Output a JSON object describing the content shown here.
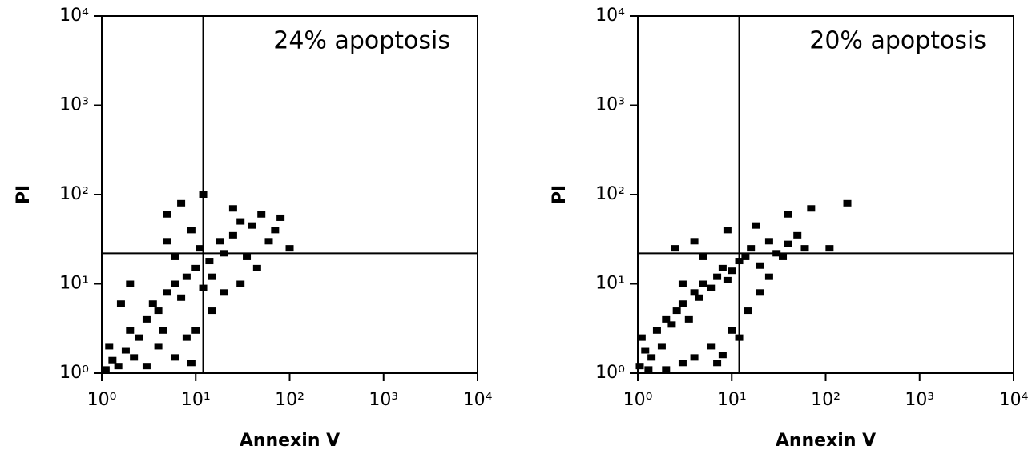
{
  "chart_data": [
    {
      "type": "scatter",
      "annotation": "24% apoptosis",
      "xlabel": "Annexin V",
      "ylabel": "PI",
      "xscale": "log",
      "yscale": "log",
      "color": "#000000",
      "xlim": [
        1,
        10000
      ],
      "ylim": [
        1,
        10000
      ],
      "xticks": [
        {
          "value": 1,
          "label": "10⁰"
        },
        {
          "value": 10,
          "label": "10¹"
        },
        {
          "value": 100,
          "label": "10²"
        },
        {
          "value": 1000,
          "label": "10³"
        },
        {
          "value": 10000,
          "label": "10⁴"
        }
      ],
      "yticks": [
        {
          "value": 1,
          "label": "10⁰"
        },
        {
          "value": 10,
          "label": "10¹"
        },
        {
          "value": 100,
          "label": "10²"
        },
        {
          "value": 1000,
          "label": "10³"
        },
        {
          "value": 10000,
          "label": "10⁴"
        }
      ],
      "quadrant_lines": {
        "x": 12,
        "y": 22
      },
      "x": [
        1.1,
        1.3,
        1.5,
        1.2,
        1.8,
        2,
        2.5,
        3,
        2.2,
        3.5,
        4,
        4.5,
        5,
        6,
        7,
        8,
        6,
        5,
        9,
        10,
        11,
        12,
        14,
        15,
        18,
        20,
        25,
        30,
        35,
        40,
        50,
        60,
        70,
        80,
        3,
        4,
        6,
        8,
        10,
        15,
        20,
        30,
        45,
        2,
        1.6,
        5,
        7,
        9,
        12,
        25,
        100
      ],
      "values": [
        1.1,
        1.4,
        1.2,
        2,
        1.8,
        3,
        2.5,
        4,
        1.5,
        6,
        5,
        3,
        8,
        10,
        7,
        12,
        20,
        30,
        40,
        15,
        25,
        9,
        18,
        12,
        30,
        22,
        35,
        50,
        20,
        45,
        60,
        30,
        40,
        55,
        1.2,
        2,
        1.5,
        2.5,
        3,
        5,
        8,
        10,
        15,
        10,
        6,
        60,
        80,
        1.3,
        100,
        70,
        25
      ]
    },
    {
      "type": "scatter",
      "annotation": "20% apoptosis",
      "xlabel": "Annexin V",
      "ylabel": "PI",
      "xscale": "log",
      "yscale": "log",
      "color": "#000000",
      "xlim": [
        1,
        10000
      ],
      "ylim": [
        1,
        10000
      ],
      "xticks": [
        {
          "value": 1,
          "label": "10⁰"
        },
        {
          "value": 10,
          "label": "10¹"
        },
        {
          "value": 100,
          "label": "10²"
        },
        {
          "value": 1000,
          "label": "10³"
        },
        {
          "value": 10000,
          "label": "10⁴"
        }
      ],
      "yticks": [
        {
          "value": 1,
          "label": "10⁰"
        },
        {
          "value": 10,
          "label": "10¹"
        },
        {
          "value": 100,
          "label": "10²"
        },
        {
          "value": 1000,
          "label": "10³"
        },
        {
          "value": 10000,
          "label": "10⁴"
        }
      ],
      "quadrant_lines": {
        "x": 12,
        "y": 22
      },
      "x": [
        1.05,
        1.2,
        1.4,
        1.1,
        1.6,
        1.8,
        2,
        2.3,
        2.6,
        3,
        3.5,
        4,
        4.5,
        5,
        6,
        7,
        8,
        9,
        10,
        12,
        14,
        16,
        20,
        25,
        30,
        35,
        40,
        50,
        60,
        70,
        1.3,
        2,
        3,
        4,
        6,
        8,
        10,
        12,
        15,
        20,
        25,
        3,
        5,
        2.5,
        4,
        9,
        7,
        18,
        40,
        110,
        170
      ],
      "values": [
        1.2,
        1.8,
        1.5,
        2.5,
        3,
        2,
        4,
        3.5,
        5,
        6,
        4,
        8,
        7,
        10,
        9,
        12,
        15,
        11,
        14,
        18,
        20,
        25,
        16,
        30,
        22,
        20,
        28,
        35,
        25,
        70,
        1.1,
        1.1,
        1.3,
        1.5,
        2,
        1.6,
        3,
        2.5,
        5,
        8,
        12,
        10,
        20,
        25,
        30,
        40,
        1.3,
        45,
        60,
        25,
        80
      ]
    }
  ]
}
